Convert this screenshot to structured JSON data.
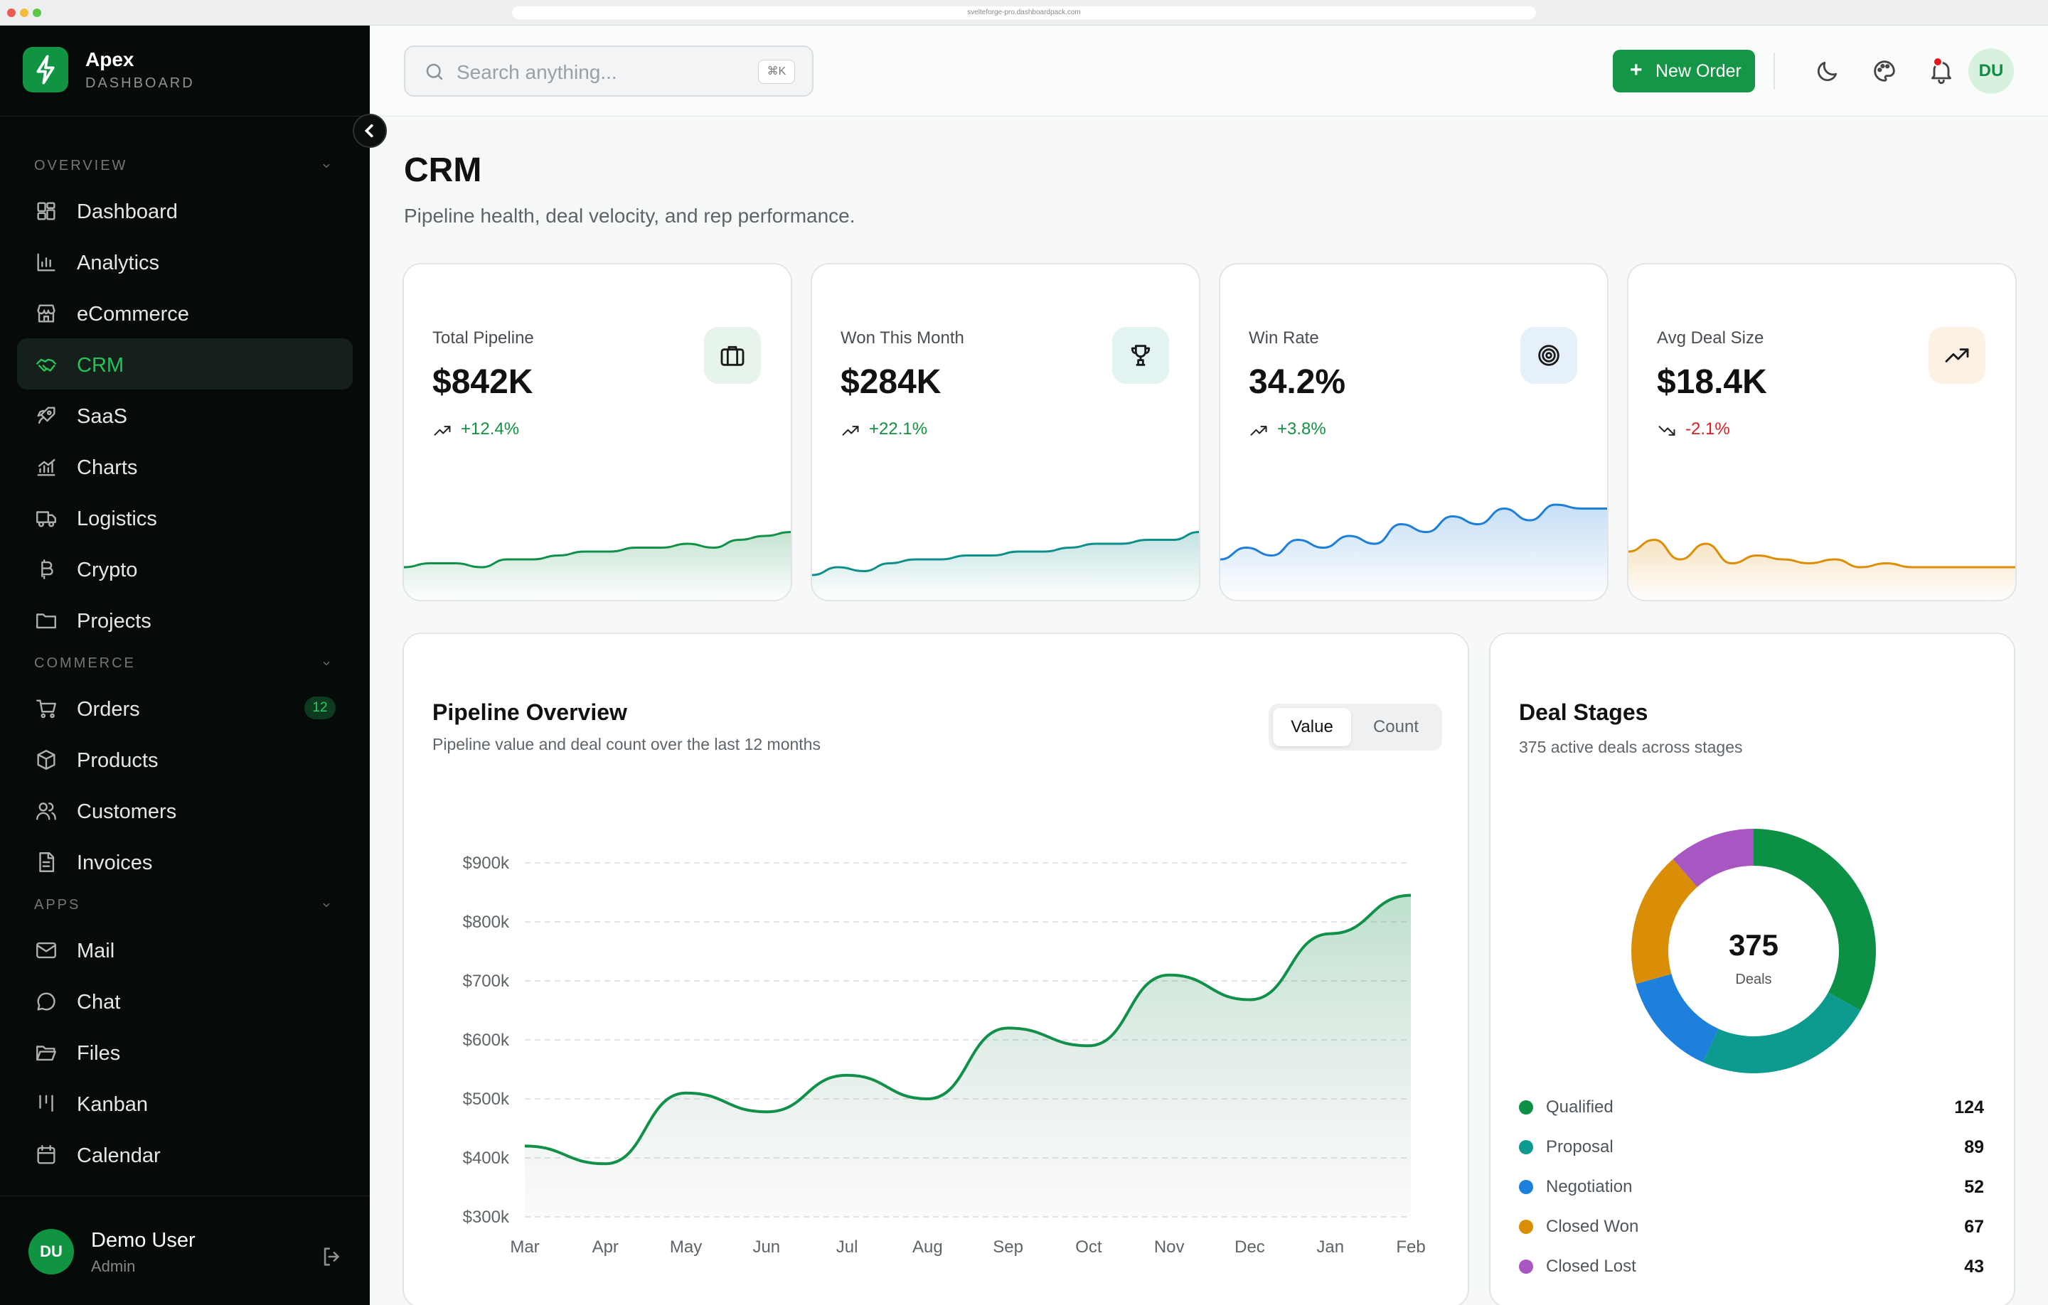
{
  "browser": {
    "url": "svelteforge-pro.dashboardpack.com"
  },
  "brand": {
    "name": "Apex",
    "subtitle": "DASHBOARD"
  },
  "sidebar": {
    "sections": [
      {
        "title": "OVERVIEW",
        "items": [
          {
            "label": "Dashboard",
            "icon": "dashboard-icon"
          },
          {
            "label": "Analytics",
            "icon": "analytics-icon"
          },
          {
            "label": "eCommerce",
            "icon": "store-icon"
          },
          {
            "label": "CRM",
            "icon": "handshake-icon",
            "active": true
          },
          {
            "label": "SaaS",
            "icon": "rocket-icon"
          },
          {
            "label": "Charts",
            "icon": "chart-icon"
          },
          {
            "label": "Logistics",
            "icon": "truck-icon"
          },
          {
            "label": "Crypto",
            "icon": "bitcoin-icon"
          },
          {
            "label": "Projects",
            "icon": "folder-icon"
          }
        ]
      },
      {
        "title": "COMMERCE",
        "items": [
          {
            "label": "Orders",
            "icon": "cart-icon",
            "badge": "12"
          },
          {
            "label": "Products",
            "icon": "box-icon"
          },
          {
            "label": "Customers",
            "icon": "users-icon"
          },
          {
            "label": "Invoices",
            "icon": "invoice-icon"
          }
        ]
      },
      {
        "title": "APPS",
        "items": [
          {
            "label": "Mail",
            "icon": "mail-icon"
          },
          {
            "label": "Chat",
            "icon": "chat-icon"
          },
          {
            "label": "Files",
            "icon": "folder-open-icon"
          },
          {
            "label": "Kanban",
            "icon": "kanban-icon"
          },
          {
            "label": "Calendar",
            "icon": "calendar-icon"
          }
        ]
      }
    ],
    "user": {
      "initials": "DU",
      "name": "Demo User",
      "role": "Admin"
    }
  },
  "header": {
    "search_placeholder": "Search anything...",
    "search_shortcut": "⌘K",
    "new_order_label": "New Order",
    "avatar_initials": "DU"
  },
  "page": {
    "title": "CRM",
    "subtitle": "Pipeline health, deal velocity, and rep performance."
  },
  "kpis": [
    {
      "label": "Total Pipeline",
      "value": "$842K",
      "change": "+12.4%",
      "trend": "up",
      "icon": "briefcase-icon",
      "color": "#11904a",
      "icon_bg": "#e7f4ec",
      "spark": [
        4,
        5,
        5,
        4,
        6,
        6,
        7,
        8,
        8,
        9,
        9,
        10,
        9,
        11,
        12,
        13
      ]
    },
    {
      "label": "Won This Month",
      "value": "$284K",
      "change": "+22.1%",
      "trend": "up",
      "icon": "trophy-icon",
      "color": "#0f8f8a",
      "icon_bg": "#e3f3f2",
      "spark": [
        2,
        4,
        3,
        5,
        6,
        6,
        7,
        7,
        8,
        8,
        9,
        10,
        10,
        11,
        11,
        13
      ]
    },
    {
      "label": "Win Rate",
      "value": "34.2%",
      "change": "+3.8%",
      "trend": "up",
      "icon": "target-icon",
      "color": "#1d7fd8",
      "icon_bg": "#e6f0fa",
      "spark": [
        6,
        9,
        7,
        11,
        9,
        12,
        10,
        15,
        13,
        17,
        15,
        19,
        16,
        20,
        19,
        19
      ]
    },
    {
      "label": "Avg Deal Size",
      "value": "$18.4K",
      "change": "-2.1%",
      "trend": "down",
      "icon": "trending-up-icon",
      "color": "#dc8e06",
      "icon_bg": "#fcf1e3",
      "spark": [
        8,
        11,
        6,
        10,
        5,
        7,
        6,
        5,
        6,
        4,
        5,
        4,
        4,
        4,
        4,
        4
      ]
    }
  ],
  "pipeline": {
    "title": "Pipeline Overview",
    "subtitle": "Pipeline value and deal count over the last 12 months",
    "toggle": [
      "Value",
      "Count"
    ],
    "active_toggle": "Value"
  },
  "chart_data": {
    "type": "area",
    "x": [
      "Mar",
      "Apr",
      "May",
      "Jun",
      "Jul",
      "Aug",
      "Sep",
      "Oct",
      "Nov",
      "Dec",
      "Jan",
      "Feb"
    ],
    "values": [
      420,
      390,
      510,
      478,
      540,
      500,
      620,
      590,
      710,
      668,
      780,
      845
    ],
    "ylim": [
      300,
      900
    ],
    "yticks": [
      "$300k",
      "$400k",
      "$500k",
      "$600k",
      "$700k",
      "$800k",
      "$900k"
    ],
    "color": "#11904a",
    "grid": true
  },
  "stages": {
    "title": "Deal Stages",
    "subtitle": "375 active deals across stages",
    "total": "375",
    "total_label": "Deals",
    "items": [
      {
        "label": "Qualified",
        "value": 124,
        "color": "#0c9046"
      },
      {
        "label": "Proposal",
        "value": 89,
        "color": "#0d9a8f"
      },
      {
        "label": "Negotiation",
        "value": 52,
        "color": "#1d80dd"
      },
      {
        "label": "Closed Won",
        "value": 67,
        "color": "#d98e05"
      },
      {
        "label": "Closed Lost",
        "value": 43,
        "color": "#a857c2"
      }
    ]
  }
}
